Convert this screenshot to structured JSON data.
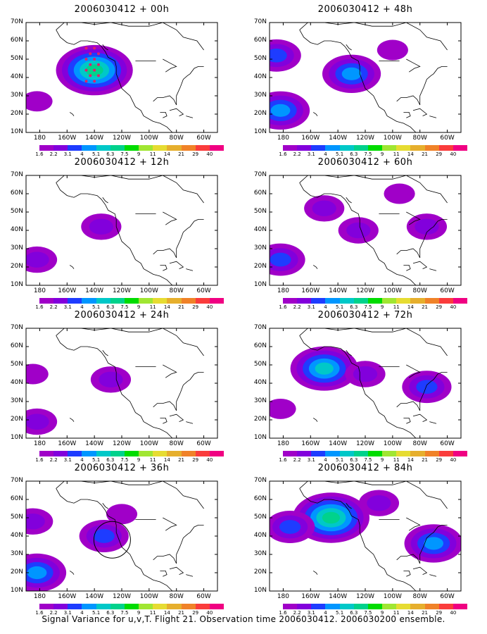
{
  "caption": "Signal Variance for u,v,T. Flight 21. Observation time 2006030412. 2006030200 ensemble.",
  "y_ticks": [
    "70N",
    "60N",
    "50N",
    "40N",
    "30N",
    "20N",
    "10N"
  ],
  "x_ticks": [
    "180",
    "160W",
    "140W",
    "120W",
    "100W",
    "80W",
    "60W"
  ],
  "colorbar": {
    "colors": [
      "#a000c8",
      "#8200dc",
      "#1e3cff",
      "#0096ff",
      "#00c8c8",
      "#00d28c",
      "#00dc00",
      "#a0e632",
      "#e6dc32",
      "#e6af2d",
      "#f08228",
      "#fa3c3c",
      "#f00082"
    ],
    "labels": [
      "1.6",
      "2.2",
      "3.1",
      "4",
      "5.1",
      "6.3",
      "7.5",
      "9",
      "11",
      "14",
      "21",
      "29",
      "40"
    ]
  },
  "panels": [
    {
      "title": "2006030412 + 00h"
    },
    {
      "title": "2006030412 + 48h"
    },
    {
      "title": "2006030412 + 12h"
    },
    {
      "title": "2006030412 + 60h"
    },
    {
      "title": "2006030412 + 24h"
    },
    {
      "title": "2006030412 + 72h"
    },
    {
      "title": "2006030412 + 36h"
    },
    {
      "title": "2006030412 + 84h"
    }
  ],
  "chart_data": {
    "type": "heatmap",
    "title": "",
    "xlabel": "",
    "ylabel": "",
    "lon_range": [
      "180",
      "60W"
    ],
    "lat_range": [
      "10N",
      "70N"
    ],
    "units_colorbar": [
      "1.6",
      "2.2",
      "3.1",
      "4",
      "5.1",
      "6.3",
      "7.5",
      "9",
      "11",
      "14",
      "21",
      "29",
      "40"
    ],
    "panels": [
      {
        "lead": "00h",
        "features": [
          {
            "lon": -140,
            "lat": 44,
            "level": "6.3",
            "shape": "blob"
          },
          {
            "lon": 178,
            "lat": 27,
            "level": "1.6",
            "shape": "blob"
          }
        ],
        "observations": "dots near 140W-145W, 38N-57N"
      },
      {
        "lead": "48h",
        "features": [
          {
            "lon": 175,
            "lat": 52,
            "level": "3.1"
          },
          {
            "lon": -130,
            "lat": 42,
            "level": "4"
          },
          {
            "lon": 178,
            "lat": 22,
            "level": "4"
          },
          {
            "lon": -100,
            "lat": 55,
            "level": "1.6"
          }
        ]
      },
      {
        "lead": "12h",
        "features": [
          {
            "lon": -135,
            "lat": 42,
            "level": "2.2"
          },
          {
            "lon": 178,
            "lat": 24,
            "level": "2.2"
          }
        ]
      },
      {
        "lead": "60h",
        "features": [
          {
            "lon": -150,
            "lat": 52,
            "level": "2.2"
          },
          {
            "lon": -125,
            "lat": 40,
            "level": "2.2"
          },
          {
            "lon": -95,
            "lat": 60,
            "level": "1.6"
          },
          {
            "lon": -75,
            "lat": 42,
            "level": "2.2"
          },
          {
            "lon": 178,
            "lat": 24,
            "level": "3.1"
          }
        ]
      },
      {
        "lead": "24h",
        "features": [
          {
            "lon": -128,
            "lat": 42,
            "level": "2.2"
          },
          {
            "lon": 175,
            "lat": 45,
            "level": "1.6"
          },
          {
            "lon": 178,
            "lat": 19,
            "level": "2.2"
          }
        ]
      },
      {
        "lead": "72h",
        "features": [
          {
            "lon": -150,
            "lat": 48,
            "level": "5.1"
          },
          {
            "lon": -120,
            "lat": 45,
            "level": "2.2"
          },
          {
            "lon": -75,
            "lat": 38,
            "level": "3.1"
          },
          {
            "lon": 178,
            "lat": 26,
            "level": "1.6"
          }
        ]
      },
      {
        "lead": "36h",
        "features": [
          {
            "lon": -133,
            "lat": 40,
            "level": "3.1"
          },
          {
            "lon": 175,
            "lat": 48,
            "level": "2.2"
          },
          {
            "lon": 178,
            "lat": 20,
            "level": "4"
          },
          {
            "lon": -120,
            "lat": 52,
            "level": "1.6"
          }
        ],
        "circle": {
          "lon": -127,
          "lat": 38
        }
      },
      {
        "lead": "84h",
        "features": [
          {
            "lon": -145,
            "lat": 50,
            "level": "6.3"
          },
          {
            "lon": -175,
            "lat": 45,
            "level": "3.1"
          },
          {
            "lon": -70,
            "lat": 36,
            "level": "4"
          },
          {
            "lon": -110,
            "lat": 58,
            "level": "2.2"
          }
        ]
      }
    ]
  }
}
